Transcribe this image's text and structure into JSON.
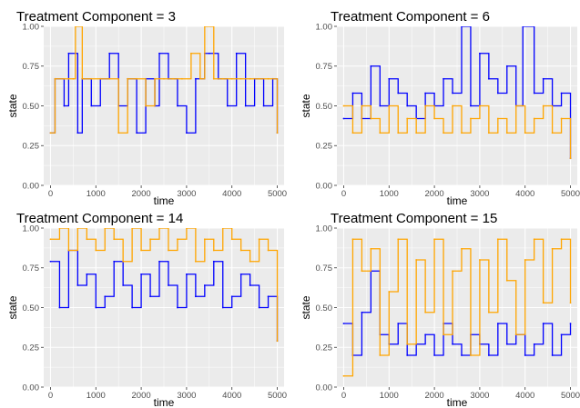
{
  "chart_data": [
    {
      "type": "line",
      "title": "Treatment Component = 3",
      "xlabel": "time",
      "ylabel": "state",
      "xlim": [
        -150,
        5150
      ],
      "ylim": [
        0,
        1
      ],
      "xticks": [
        0,
        1000,
        2000,
        3000,
        4000,
        5000
      ],
      "xtick_labels": [
        "0",
        "1000",
        "2000",
        "3000",
        "4000",
        "5000"
      ],
      "yticks": [
        0,
        0.25,
        0.5,
        0.75,
        1
      ],
      "ytick_labels": [
        "0.00",
        "0.25",
        "0.50",
        "0.75",
        "1.00"
      ],
      "grid": true,
      "series": [
        {
          "color": "#0000ff",
          "x": [
            0,
            100,
            300,
            400,
            600,
            700,
            900,
            1100,
            1300,
            1500,
            1700,
            1900,
            2100,
            2300,
            2400,
            2600,
            2800,
            3000,
            3200,
            3400,
            3500,
            3700,
            3900,
            4100,
            4300,
            4500,
            4700,
            4900,
            5000
          ],
          "y": [
            0.33,
            0.67,
            0.5,
            0.83,
            0.33,
            0.67,
            0.5,
            0.67,
            0.83,
            0.5,
            0.67,
            0.33,
            0.67,
            0.5,
            0.83,
            0.67,
            0.5,
            0.33,
            0.67,
            0.83,
            0.83,
            0.67,
            0.5,
            0.83,
            0.5,
            0.67,
            0.5,
            0.67,
            0.33
          ]
        },
        {
          "color": "#ffa500",
          "x": [
            0,
            100,
            300,
            400,
            500,
            550,
            700,
            900,
            1100,
            1300,
            1500,
            1700,
            1900,
            2100,
            2300,
            2500,
            2700,
            2900,
            3100,
            3300,
            3400,
            3600,
            3800,
            4000,
            4200,
            4400,
            4600,
            4800,
            5000
          ],
          "y": [
            0.33,
            0.67,
            0.67,
            0.67,
            0.67,
            1.0,
            0.67,
            0.67,
            0.67,
            0.67,
            0.33,
            0.67,
            0.67,
            0.5,
            0.67,
            0.67,
            0.67,
            0.67,
            0.83,
            0.67,
            1.0,
            0.67,
            0.67,
            0.67,
            0.67,
            0.67,
            0.67,
            0.67,
            0.33
          ]
        }
      ]
    },
    {
      "type": "line",
      "title": "Treatment Component = 6",
      "xlabel": "time",
      "ylabel": "state",
      "xlim": [
        -150,
        5150
      ],
      "ylim": [
        0,
        1
      ],
      "xticks": [
        0,
        1000,
        2000,
        3000,
        4000,
        5000
      ],
      "xtick_labels": [
        "0",
        "1000",
        "2000",
        "3000",
        "4000",
        "5000"
      ],
      "yticks": [
        0,
        0.25,
        0.5,
        0.75,
        1
      ],
      "ytick_labels": [
        "0.00",
        "0.25",
        "0.50",
        "0.75",
        "1.00"
      ],
      "grid": true,
      "series": [
        {
          "color": "#0000ff",
          "x": [
            0,
            200,
            400,
            600,
            800,
            1000,
            1200,
            1400,
            1600,
            1800,
            2000,
            2200,
            2400,
            2600,
            2800,
            3000,
            3200,
            3400,
            3600,
            3800,
            3950,
            4200,
            4400,
            4600,
            4800,
            5000
          ],
          "y": [
            0.42,
            0.58,
            0.42,
            0.75,
            0.5,
            0.67,
            0.58,
            0.5,
            0.42,
            0.58,
            0.5,
            0.67,
            0.58,
            1.0,
            0.5,
            0.83,
            0.67,
            0.58,
            0.75,
            0.5,
            1.0,
            0.58,
            0.67,
            0.5,
            0.58,
            0.17
          ]
        },
        {
          "color": "#ffa500",
          "x": [
            0,
            200,
            400,
            600,
            800,
            1000,
            1200,
            1400,
            1600,
            1800,
            2000,
            2200,
            2400,
            2600,
            2800,
            3000,
            3200,
            3400,
            3600,
            3800,
            4000,
            4200,
            4400,
            4600,
            4800,
            5000
          ],
          "y": [
            0.5,
            0.33,
            0.5,
            0.42,
            0.33,
            0.5,
            0.33,
            0.42,
            0.33,
            0.5,
            0.42,
            0.33,
            0.5,
            0.33,
            0.42,
            0.5,
            0.33,
            0.42,
            0.33,
            0.5,
            0.33,
            0.42,
            0.5,
            0.33,
            0.42,
            0.17
          ]
        }
      ]
    },
    {
      "type": "line",
      "title": "Treatment Component = 14",
      "xlabel": "time",
      "ylabel": "state",
      "xlim": [
        -150,
        5150
      ],
      "ylim": [
        0,
        1
      ],
      "xticks": [
        0,
        1000,
        2000,
        3000,
        4000,
        5000
      ],
      "xtick_labels": [
        "0",
        "1000",
        "2000",
        "3000",
        "4000",
        "5000"
      ],
      "yticks": [
        0,
        0.25,
        0.5,
        0.75,
        1
      ],
      "ytick_labels": [
        "0.00",
        "0.25",
        "0.50",
        "0.75",
        "1.00"
      ],
      "grid": true,
      "series": [
        {
          "color": "#0000ff",
          "x": [
            0,
            200,
            400,
            600,
            800,
            1000,
            1200,
            1400,
            1600,
            1800,
            2000,
            2200,
            2400,
            2600,
            2800,
            3000,
            3200,
            3400,
            3600,
            3800,
            4000,
            4200,
            4400,
            4600,
            4800,
            5000
          ],
          "y": [
            0.79,
            0.5,
            0.86,
            0.64,
            0.71,
            0.5,
            0.57,
            0.79,
            0.64,
            0.5,
            0.71,
            0.57,
            0.79,
            0.64,
            0.5,
            0.71,
            0.57,
            0.64,
            0.79,
            0.5,
            0.57,
            0.71,
            0.64,
            0.5,
            0.57,
            0.29
          ]
        },
        {
          "color": "#ffa500",
          "x": [
            0,
            200,
            400,
            600,
            800,
            1000,
            1200,
            1400,
            1600,
            1800,
            2000,
            2200,
            2400,
            2600,
            2800,
            3000,
            3200,
            3400,
            3600,
            3800,
            4000,
            4200,
            4400,
            4600,
            4800,
            5000
          ],
          "y": [
            0.93,
            1.0,
            0.86,
            1.0,
            0.93,
            0.86,
            1.0,
            0.93,
            0.79,
            1.0,
            0.86,
            0.93,
            1.0,
            0.86,
            0.93,
            1.0,
            0.79,
            0.93,
            0.86,
            1.0,
            0.93,
            0.86,
            0.79,
            0.93,
            0.86,
            0.29
          ]
        }
      ]
    },
    {
      "type": "line",
      "title": "Treatment Component = 15",
      "xlabel": "time",
      "ylabel": "state",
      "xlim": [
        -150,
        5150
      ],
      "ylim": [
        0,
        1
      ],
      "xticks": [
        0,
        1000,
        2000,
        3000,
        4000,
        5000
      ],
      "xtick_labels": [
        "0",
        "1000",
        "2000",
        "3000",
        "4000",
        "5000"
      ],
      "yticks": [
        0,
        0.25,
        0.5,
        0.75,
        1
      ],
      "ytick_labels": [
        "0.00",
        "0.25",
        "0.50",
        "0.75",
        "1.00"
      ],
      "grid": true,
      "series": [
        {
          "color": "#0000ff",
          "x": [
            0,
            200,
            400,
            600,
            800,
            1000,
            1200,
            1400,
            1600,
            1800,
            2000,
            2200,
            2400,
            2600,
            2800,
            3000,
            3200,
            3400,
            3600,
            3800,
            4000,
            4200,
            4400,
            4600,
            4800,
            5000
          ],
          "y": [
            0.4,
            0.2,
            0.47,
            0.73,
            0.33,
            0.27,
            0.4,
            0.2,
            0.27,
            0.33,
            0.2,
            0.4,
            0.27,
            0.2,
            0.33,
            0.27,
            0.2,
            0.4,
            0.27,
            0.33,
            0.2,
            0.27,
            0.4,
            0.2,
            0.33,
            0.4
          ]
        },
        {
          "color": "#ffa500",
          "x": [
            0,
            200,
            400,
            600,
            800,
            1000,
            1200,
            1400,
            1600,
            1800,
            2000,
            2200,
            2400,
            2600,
            2800,
            3000,
            3200,
            3400,
            3600,
            3800,
            4000,
            4200,
            4400,
            4600,
            4800,
            5000
          ],
          "y": [
            0.07,
            0.93,
            0.73,
            0.87,
            0.2,
            0.6,
            0.93,
            0.27,
            0.8,
            0.47,
            0.93,
            0.33,
            0.73,
            0.87,
            0.2,
            0.8,
            0.47,
            0.93,
            0.67,
            0.33,
            0.8,
            0.93,
            0.53,
            0.87,
            0.93,
            0.53
          ]
        }
      ]
    }
  ]
}
